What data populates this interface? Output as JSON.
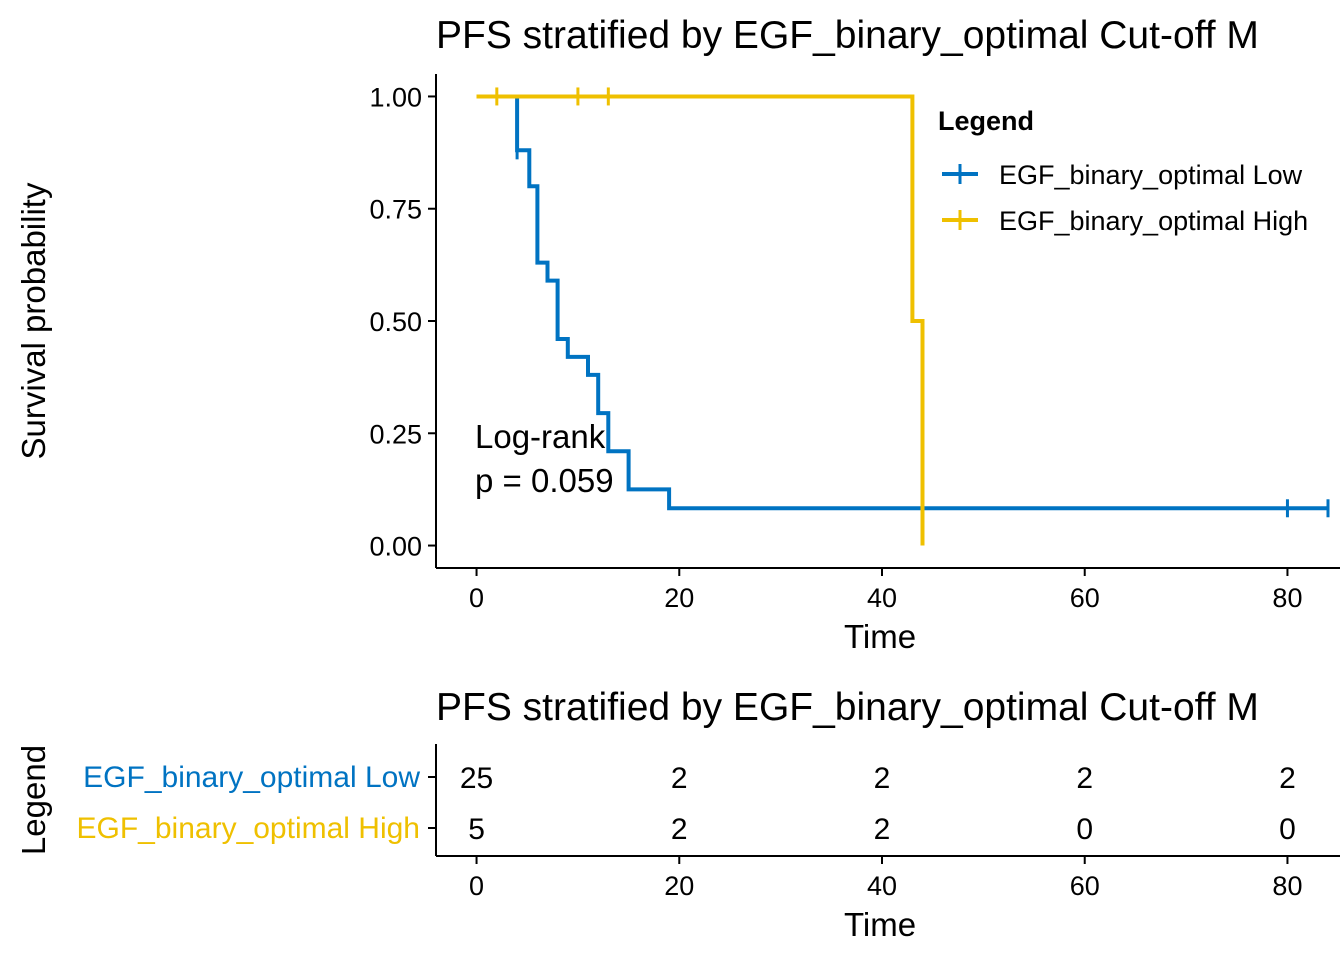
{
  "chart_data": [
    {
      "type": "line",
      "subtype": "kaplan-meier",
      "title": "PFS stratified by EGF_binary_optimal Cut-off M",
      "xlabel": "Time",
      "ylabel": "Survival probability",
      "xlim": [
        -4,
        84
      ],
      "ylim": [
        -0.05,
        1.05
      ],
      "x_ticks": [
        0,
        20,
        40,
        60,
        80
      ],
      "y_ticks": [
        0,
        0.25,
        0.5,
        0.75,
        1
      ],
      "y_tick_labels": [
        "0.00",
        "0.25",
        "0.50",
        "0.75",
        "1.00"
      ],
      "grid": false,
      "legend": {
        "title": "Legend",
        "position": "right",
        "entries": [
          "EGF_binary_optimal Low",
          "EGF_binary_optimal High"
        ]
      },
      "annotation": [
        "Log-rank",
        "p = 0.059"
      ],
      "series": [
        {
          "name": "EGF_binary_optimal Low",
          "color": "#0073C2",
          "steps": [
            [
              0,
              1.0
            ],
            [
              4,
              1.0
            ],
            [
              4,
              0.88
            ],
            [
              5.2,
              0.88
            ],
            [
              5.2,
              0.8
            ],
            [
              6,
              0.8
            ],
            [
              6,
              0.63
            ],
            [
              7,
              0.63
            ],
            [
              7,
              0.59
            ],
            [
              8,
              0.59
            ],
            [
              8,
              0.46
            ],
            [
              9,
              0.46
            ],
            [
              9,
              0.42
            ],
            [
              11,
              0.42
            ],
            [
              11,
              0.38
            ],
            [
              12,
              0.38
            ],
            [
              12,
              0.295
            ],
            [
              13,
              0.295
            ],
            [
              13,
              0.21
            ],
            [
              15,
              0.21
            ],
            [
              15,
              0.125
            ],
            [
              19,
              0.125
            ],
            [
              19,
              0.083
            ],
            [
              84,
              0.083
            ]
          ],
          "censor_points": [
            [
              4,
              0.88
            ],
            [
              80,
              0.083
            ],
            [
              84,
              0.083
            ]
          ]
        },
        {
          "name": "EGF_binary_optimal High",
          "color": "#EFC000",
          "steps": [
            [
              0,
              1.0
            ],
            [
              43,
              1.0
            ],
            [
              43,
              0.5
            ],
            [
              44,
              0.5
            ],
            [
              44,
              0.0
            ]
          ],
          "censor_points": [
            [
              2,
              1.0
            ],
            [
              10,
              1.0
            ],
            [
              13,
              1.0
            ]
          ]
        }
      ]
    },
    {
      "type": "table",
      "subtype": "risk-table",
      "title": "PFS stratified by EGF_binary_optimal Cut-off M",
      "xlabel": "Time",
      "ylabel": "Legend",
      "xlim": [
        -4,
        84
      ],
      "x_ticks": [
        0,
        20,
        40,
        60,
        80
      ],
      "grid": false,
      "rows": [
        {
          "name": "EGF_binary_optimal Low",
          "color": "#0073C2",
          "values": [
            25,
            2,
            2,
            2,
            2
          ]
        },
        {
          "name": "EGF_binary_optimal High",
          "color": "#EFC000",
          "values": [
            5,
            2,
            2,
            0,
            0
          ]
        }
      ]
    }
  ]
}
